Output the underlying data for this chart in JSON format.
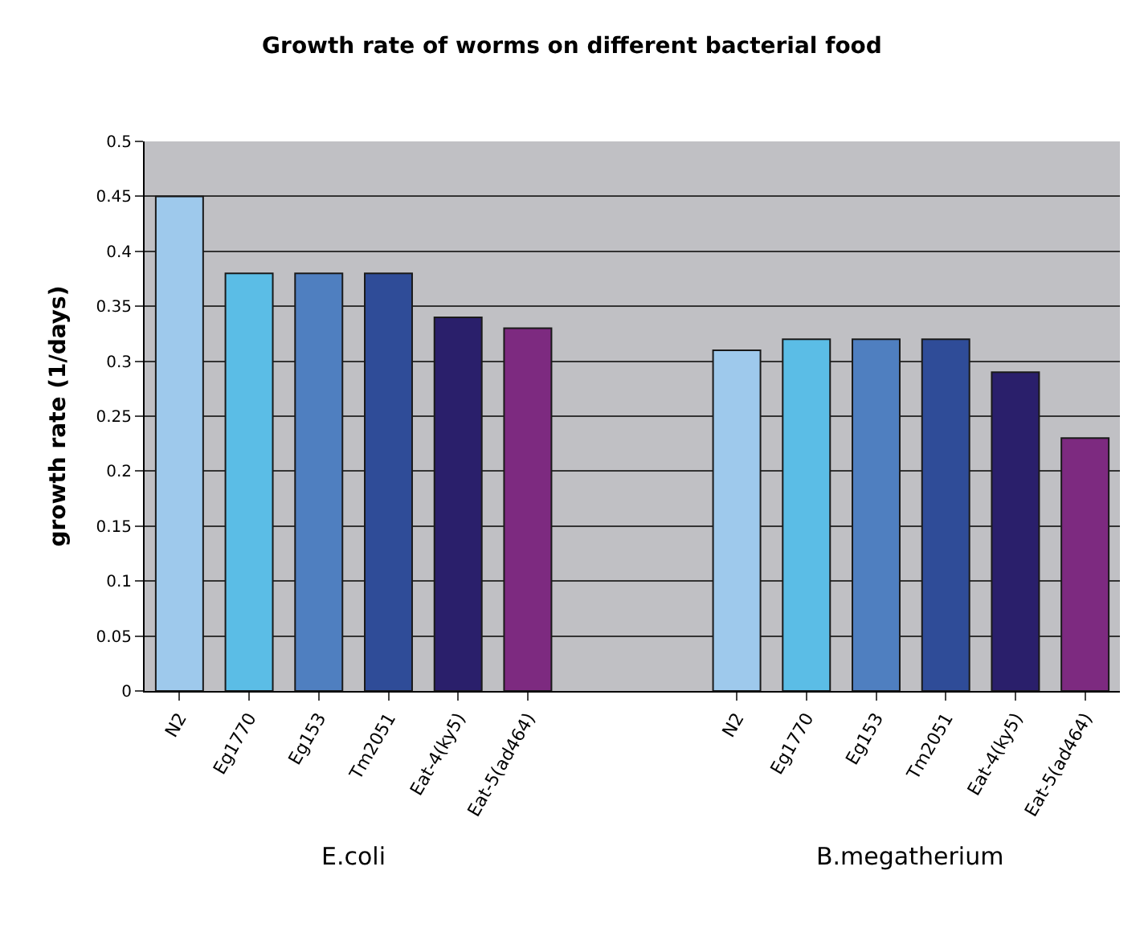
{
  "chart_data": {
    "type": "bar",
    "title": "Growth rate of worms on different bacterial food",
    "ylabel": "growth rate (1/days)",
    "categories": [
      "N2",
      "Eg1770",
      "Eg153",
      "Tm2051",
      "Eat-4(ky5)",
      "Eat-5(ad464)",
      null,
      null,
      "N2",
      "Eg1770",
      "Eg153",
      "Tm2051",
      "Eat-4(ky5)",
      "Eat-5(ad464)"
    ],
    "values": [
      0.45,
      0.38,
      0.38,
      0.38,
      0.34,
      0.33,
      null,
      null,
      0.31,
      0.32,
      0.32,
      0.32,
      0.29,
      0.23
    ],
    "colors": [
      "#9ec9ec",
      "#5bbde6",
      "#4f7fc0",
      "#2f4c98",
      "#2a1f6b",
      "#7d2a80",
      null,
      null,
      "#9ec9ec",
      "#5bbde6",
      "#4f7fc0",
      "#2f4c98",
      "#2a1f6b",
      "#7d2a80"
    ],
    "ylim": [
      0,
      0.5
    ],
    "yticks": [
      0,
      0.05,
      0.1,
      0.15,
      0.2,
      0.25,
      0.3,
      0.35,
      0.4,
      0.45,
      0.5
    ],
    "grid": "y",
    "annotations": [
      "E.coli",
      "B.megatherium"
    ]
  }
}
